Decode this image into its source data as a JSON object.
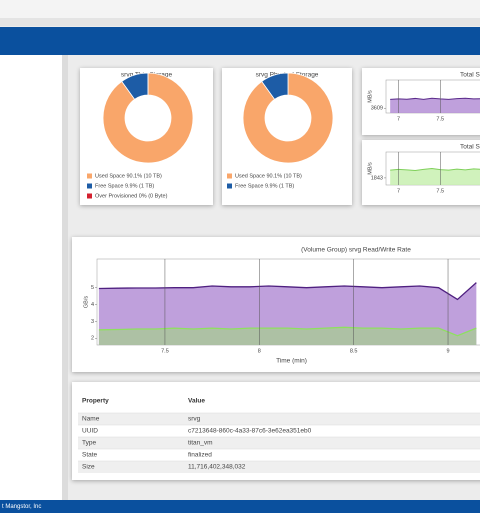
{
  "donuts": [
    {
      "title": "srvg Thin Storage",
      "slices": [
        {
          "label": "Used Space 90.1% (10 TB)",
          "value": 90.1,
          "color": "#f9a66a"
        },
        {
          "label": "Free Space 9.9% (1 TB)",
          "value": 9.9,
          "color": "#1d5ca6"
        },
        {
          "label": "Over Provisioned 0% (0 Byte)",
          "value": 0,
          "color": "#d3202f"
        }
      ]
    },
    {
      "title": "srvg Physical Storage",
      "slices": [
        {
          "label": "Used Space 90.1% (10 TB)",
          "value": 90.1,
          "color": "#f9a66a"
        },
        {
          "label": "Free Space 9.9% (1 TB)",
          "value": 9.9,
          "color": "#1d5ca6"
        }
      ]
    }
  ],
  "small_charts": [
    {
      "title": "Total S",
      "y_label": "MB/s",
      "xlim": [
        6.85,
        8.0
      ],
      "ylim": [
        3560,
        3900
      ],
      "xticks": [
        7,
        7.5
      ],
      "yticks": [
        3609
      ],
      "x": [
        6.9,
        7.0,
        7.1,
        7.2,
        7.3,
        7.4,
        7.5,
        7.6,
        7.7,
        7.8,
        7.9,
        8.0
      ],
      "series": [
        {
          "color": "#5a2a8a",
          "fill": "#b48fd6",
          "values": [
            3700,
            3705,
            3702,
            3710,
            3700,
            3712,
            3705,
            3700,
            3708,
            3712,
            3705,
            3708
          ]
        }
      ]
    },
    {
      "title": "Total S",
      "y_label": "MB/s",
      "xlim": [
        6.85,
        8.0
      ],
      "ylim": [
        1800,
        2000
      ],
      "xticks": [
        7,
        7.5
      ],
      "yticks": [
        1843
      ],
      "x": [
        6.9,
        7.0,
        7.1,
        7.2,
        7.3,
        7.4,
        7.5,
        7.6,
        7.7,
        7.8,
        7.9,
        8.0
      ],
      "series": [
        {
          "color": "#7fd05a",
          "fill": "#c8f0b0",
          "values": [
            1890,
            1895,
            1892,
            1888,
            1895,
            1900,
            1893,
            1890,
            1896,
            1892,
            1898,
            1895
          ]
        }
      ]
    }
  ],
  "main_chart": {
    "title": "(Volume Group) srvg Read/Write Rate",
    "y_label": "GB/s",
    "x_label": "Time (min)",
    "xlim": [
      7.14,
      9.18
    ],
    "ylim": [
      1.6,
      6.7
    ],
    "xticks": [
      7.5,
      8,
      8.5,
      9
    ],
    "yticks": [
      2,
      3,
      4,
      5
    ],
    "x": [
      7.15,
      7.25,
      7.35,
      7.45,
      7.55,
      7.65,
      7.75,
      7.85,
      7.95,
      8.05,
      8.15,
      8.25,
      8.35,
      8.45,
      8.55,
      8.65,
      8.75,
      8.85,
      8.95,
      9.05,
      9.15
    ],
    "series": [
      {
        "color": "#4f2080",
        "fill": "#b48fd6",
        "values": [
          4.95,
          4.97,
          4.98,
          4.98,
          5.0,
          5.0,
          5.1,
          5.05,
          5.05,
          5.1,
          5.05,
          5.0,
          5.05,
          5.1,
          5.05,
          5.0,
          5.05,
          5.1,
          5.0,
          4.3,
          5.3
        ]
      },
      {
        "color": "#8ee060",
        "fill": "#a9c79a",
        "values": [
          2.5,
          2.52,
          2.55,
          2.55,
          2.6,
          2.55,
          2.6,
          2.55,
          2.6,
          2.6,
          2.6,
          2.55,
          2.6,
          2.65,
          2.6,
          2.6,
          2.55,
          2.6,
          2.6,
          2.15,
          2.6
        ]
      }
    ]
  },
  "table": {
    "header": [
      "Property",
      "Value"
    ],
    "rows": [
      [
        "Name",
        "srvg"
      ],
      [
        "UUID",
        "c7213648-860c-4a33-87c6-3e62ea351eb0"
      ],
      [
        "Type",
        "titan_vm"
      ],
      [
        "State",
        "finalized"
      ],
      [
        "Size",
        "11,716,402,348,032"
      ]
    ]
  },
  "footer": "t Mangstor, Inc"
}
